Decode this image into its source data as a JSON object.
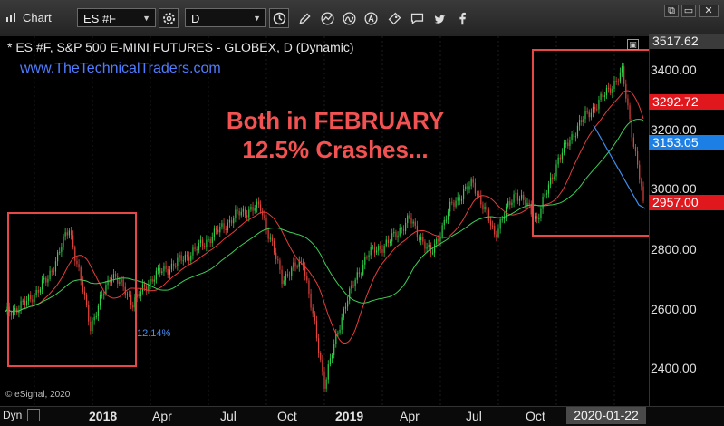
{
  "toolbar": {
    "app_title": "Chart",
    "symbol_value": "ES #F",
    "interval_value": "D",
    "icons": [
      "settings-icon",
      "clock-icon",
      "pencil-icon",
      "chart-style-icon",
      "alert-icon",
      "share-icon",
      "comment-icon",
      "twitter-icon",
      "facebook-icon"
    ],
    "window_buttons": [
      "restore-icon",
      "minimize-icon",
      "close-icon"
    ],
    "close_glyph": "✕"
  },
  "chart": {
    "title": "* ES #F, S&P 500 E-MINI FUTURES - GLOBEX, D (Dynamic)",
    "website": "www.TheTechnicalTraders.com",
    "headline_line1": "Both in FEBRUARY",
    "headline_line2": "12.5% Crashes...",
    "crash_label": "12.14%",
    "copyright": "© eSignal, 2020",
    "colors": {
      "up": "#2fd04a",
      "down": "#e2443c",
      "ma_fast": "#e63c3c",
      "ma_slow": "#3ccf57",
      "annotation_box": "#e64848",
      "headline": "#f25252",
      "website": "#4f7dff",
      "trend_line": "#3d8ef0"
    }
  },
  "y_axis": {
    "labels": [
      "3400.00",
      "3200.00",
      "3000.00",
      "2800.00",
      "2600.00",
      "2400.00"
    ],
    "tags": {
      "top": "3517.62",
      "high": "3292.72",
      "last": "3153.05",
      "low": "2957.00"
    }
  },
  "x_axis": {
    "dyn_label": "Dyn",
    "labels": [
      {
        "text": "2018",
        "bold": true
      },
      {
        "text": "Apr",
        "bold": false
      },
      {
        "text": "Jul",
        "bold": false
      },
      {
        "text": "Oct",
        "bold": false
      },
      {
        "text": "2019",
        "bold": true
      },
      {
        "text": "Apr",
        "bold": false
      },
      {
        "text": "Jul",
        "bold": false
      },
      {
        "text": "Oct",
        "bold": false
      }
    ],
    "cursor_date": "2020-01-22"
  },
  "chart_data": {
    "type": "candlestick",
    "title": "* ES #F, S&P 500 E-MINI FUTURES - GLOBEX, D (Dynamic)",
    "ylim": [
      2300,
      3520
    ],
    "x": [
      "2017-11",
      "2017-12",
      "2018-01",
      "2018-01-26",
      "2018-02-08",
      "2018-03",
      "2018-04",
      "2018-05",
      "2018-06",
      "2018-07",
      "2018-08",
      "2018-09",
      "2018-10-01",
      "2018-10-30",
      "2018-11",
      "2018-12-26",
      "2019-01",
      "2019-02",
      "2019-03",
      "2019-04",
      "2019-05",
      "2019-06",
      "2019-07",
      "2019-08",
      "2019-09",
      "2019-10",
      "2019-11",
      "2019-12",
      "2020-01",
      "2020-02-19",
      "2020-02-28"
    ],
    "close": [
      2580,
      2620,
      2700,
      2870,
      2540,
      2720,
      2620,
      2710,
      2750,
      2800,
      2860,
      2920,
      2940,
      2700,
      2760,
      2350,
      2620,
      2780,
      2820,
      2900,
      2780,
      2950,
      3020,
      2850,
      2990,
      2900,
      3100,
      3220,
      3300,
      3390,
      2960
    ],
    "series": [
      {
        "name": "",
        "kind": "moving-average-fast"
      },
      {
        "name": "",
        "kind": "moving-average-slow"
      }
    ]
  }
}
